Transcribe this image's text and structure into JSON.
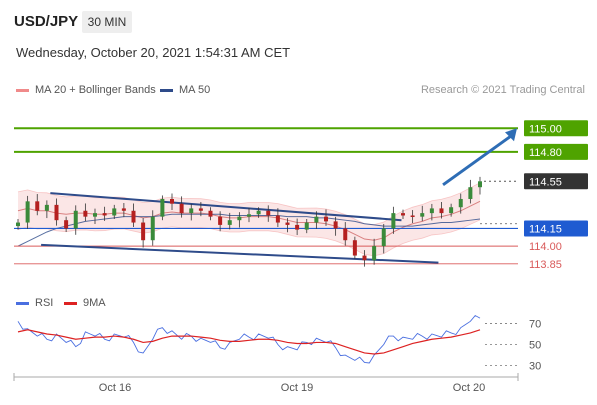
{
  "header": {
    "symbol": "USD/JPY",
    "timeframe": "30 MIN",
    "datetime": "Wednesday, October 20, 2021 1:54:31 AM CET"
  },
  "legend": {
    "ma20_label": "MA 20 + Bollinger Bands",
    "ma50_label": "MA 50",
    "credit": "Research © 2021 Trading Central",
    "rsi_label": "RSI",
    "rsi_ma_label": "9MA"
  },
  "colors": {
    "bull": "#3a8a3a",
    "bear": "#b52020",
    "ma20_band": "#f3a6a6",
    "band_fill": "#fbe3e3",
    "ma50": "#2e4b8a",
    "trendline": "#2e4b8a",
    "resistance": "#4fa300",
    "support_blue": "#1f5bd1",
    "support_red": "#d95a5a",
    "current": "#333333",
    "rsi": "#4a6fe0",
    "rsi_ma": "#dd2222"
  },
  "chart_data": [
    {
      "type": "candlestick",
      "x_labels": [
        "Oct 16",
        "Oct 19",
        "Oct 20"
      ],
      "ylim": [
        113.67,
        115.24
      ],
      "levels": [
        {
          "value": 115.0,
          "label": "115.00",
          "kind": "resistance"
        },
        {
          "value": 114.8,
          "label": "114.80",
          "kind": "resistance"
        },
        {
          "value": 114.55,
          "label": "114.55",
          "kind": "current"
        },
        {
          "value": 114.15,
          "label": "114.15",
          "kind": "pivot"
        },
        {
          "value": 114.0,
          "label": "114.00",
          "kind": "support"
        },
        {
          "value": 113.85,
          "label": "113.85",
          "kind": "support"
        }
      ],
      "trend_channel": {
        "upper": [
          [
            0.07,
            114.45
          ],
          [
            0.83,
            114.22
          ]
        ],
        "lower": [
          [
            0.05,
            114.01
          ],
          [
            0.91,
            113.86
          ]
        ]
      },
      "target_arrow": {
        "from": [
          0.92,
          114.52
        ],
        "to": [
          1.0,
          115.0
        ]
      },
      "price_path": [
        114.2,
        114.38,
        114.3,
        114.35,
        114.22,
        114.15,
        114.3,
        114.25,
        114.28,
        114.26,
        114.32,
        114.3,
        114.2,
        114.05,
        114.25,
        114.4,
        114.36,
        114.28,
        114.32,
        114.3,
        114.25,
        114.18,
        114.22,
        114.25,
        114.27,
        114.3,
        114.26,
        114.2,
        114.18,
        114.14,
        114.2,
        114.25,
        114.21,
        114.15,
        114.05,
        113.92,
        113.88,
        114.0,
        114.15,
        114.28,
        114.26,
        114.25,
        114.28,
        114.32,
        114.28,
        114.33,
        114.4,
        114.5,
        114.55
      ],
      "ma20": [
        114.3,
        114.32,
        114.3,
        114.3,
        114.28,
        114.27,
        114.28,
        114.28,
        114.27,
        114.27,
        114.28,
        114.28,
        114.26,
        114.24,
        114.25,
        114.28,
        114.29,
        114.28,
        114.28,
        114.28,
        114.27,
        114.25,
        114.24,
        114.24,
        114.25,
        114.25,
        114.25,
        114.24,
        114.22,
        114.2,
        114.2,
        114.2,
        114.19,
        114.17,
        114.14,
        114.1,
        114.06,
        114.05,
        114.07,
        114.12,
        114.16,
        114.19,
        114.21,
        114.24,
        114.25,
        114.27,
        114.3,
        114.34,
        114.38
      ],
      "ma50": [
        114.0,
        114.04,
        114.08,
        114.12,
        114.15,
        114.17,
        114.19,
        114.21,
        114.22,
        114.23,
        114.24,
        114.25,
        114.25,
        114.25,
        114.25,
        114.26,
        114.27,
        114.27,
        114.27,
        114.27,
        114.27,
        114.27,
        114.26,
        114.26,
        114.26,
        114.26,
        114.26,
        114.26,
        114.25,
        114.25,
        114.25,
        114.24,
        114.24,
        114.23,
        114.22,
        114.21,
        114.19,
        114.18,
        114.17,
        114.17,
        114.17,
        114.17,
        114.18,
        114.19,
        114.2,
        114.2,
        114.21,
        114.22,
        114.23
      ]
    },
    {
      "type": "line",
      "series": [
        {
          "name": "RSI",
          "values": [
            72,
            65,
            58,
            55,
            60,
            52,
            48,
            62,
            58,
            55,
            60,
            57,
            52,
            42,
            55,
            66,
            63,
            55,
            58,
            56,
            52,
            47,
            52,
            55,
            57,
            60,
            56,
            50,
            48,
            45,
            52,
            56,
            52,
            47,
            40,
            35,
            33,
            40,
            50,
            58,
            57,
            55,
            58,
            60,
            57,
            61,
            66,
            72,
            75
          ]
        },
        {
          "name": "9MA",
          "values": [
            62,
            64,
            62,
            60,
            59,
            57,
            55,
            56,
            57,
            57,
            58,
            57,
            55,
            52,
            53,
            56,
            58,
            58,
            58,
            57,
            56,
            54,
            53,
            53,
            54,
            55,
            55,
            54,
            52,
            51,
            51,
            52,
            52,
            51,
            48,
            45,
            42,
            41,
            42,
            45,
            48,
            51,
            53,
            55,
            56,
            57,
            59,
            61,
            64
          ]
        }
      ],
      "y_ticks": [
        70,
        50,
        30
      ],
      "ylim": [
        23,
        78
      ]
    }
  ]
}
